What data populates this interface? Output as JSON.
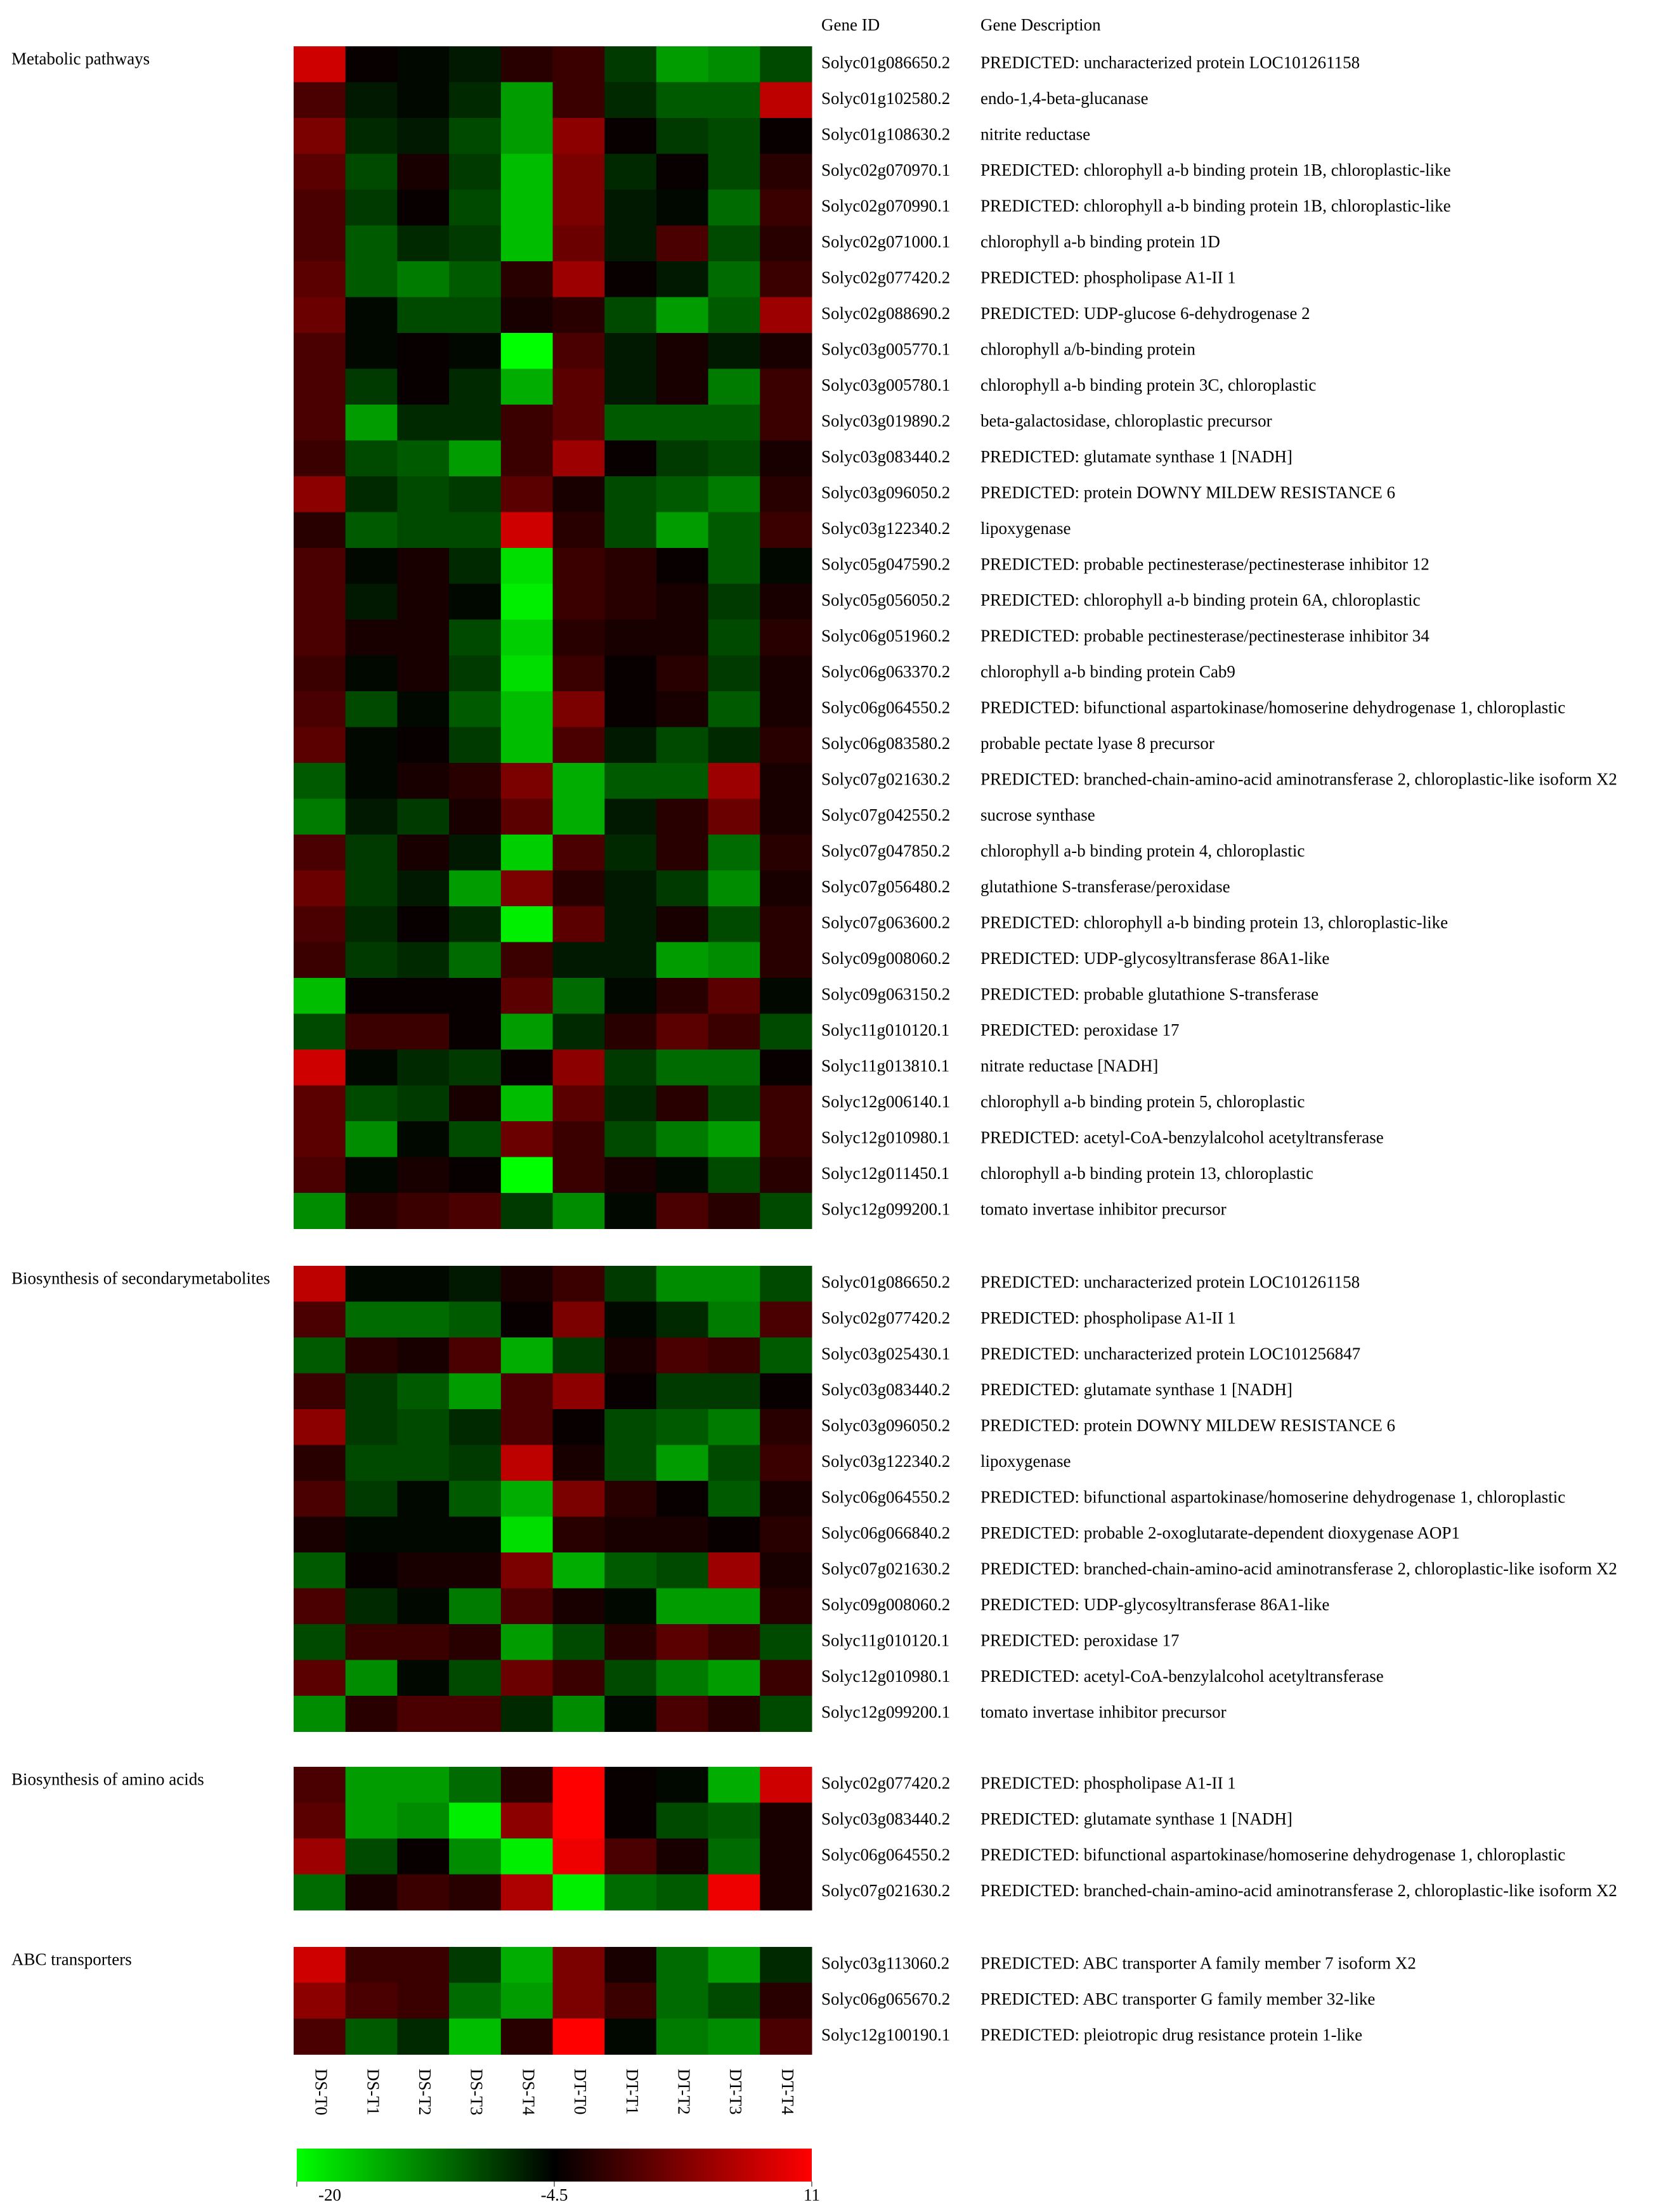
{
  "chart_data": {
    "type": "heatmap",
    "gene_id_header": "Gene ID",
    "description_header": "Gene Description",
    "columns": [
      "DS-T0",
      "DS-T1",
      "DS-T2",
      "DS-T3",
      "DS-T4",
      "DT-T0",
      "DT-T1",
      "DT-T2",
      "DT-T3",
      "DT-T4"
    ],
    "colorbar": {
      "ticks": [
        -20,
        -4.5,
        11
      ],
      "colors": [
        "#00ff00",
        "#000000",
        "#ff0000"
      ]
    },
    "groups": [
      {
        "name": "Metabolic pathways",
        "gene_ids": [
          "Solyc01g086650.2",
          "Solyc01g102580.2",
          "Solyc01g108630.2",
          "Solyc02g070970.1",
          "Solyc02g070990.1",
          "Solyc02g071000.1",
          "Solyc02g077420.2",
          "Solyc02g088690.2",
          "Solyc03g005770.1",
          "Solyc03g005780.1",
          "Solyc03g019890.2",
          "Solyc03g083440.2",
          "Solyc03g096050.2",
          "Solyc03g122340.2",
          "Solyc05g047590.2",
          "Solyc05g056050.2",
          "Solyc06g051960.2",
          "Solyc06g063370.2",
          "Solyc06g064550.2",
          "Solyc06g083580.2",
          "Solyc07g021630.2",
          "Solyc07g042550.2",
          "Solyc07g047850.2",
          "Solyc07g056480.2",
          "Solyc07g063600.2",
          "Solyc09g008060.2",
          "Solyc09g063150.2",
          "Solyc11g010120.1",
          "Solyc11g013810.1",
          "Solyc12g006140.1",
          "Solyc12g010980.1",
          "Solyc12g011450.1",
          "Solyc12g099200.1"
        ],
        "descriptions": [
          "PREDICTED: uncharacterized protein LOC101261158",
          "endo-1,4-beta-glucanase",
          "nitrite reductase",
          "PREDICTED: chlorophyll a-b binding protein 1B, chloroplastic-like",
          "PREDICTED: chlorophyll a-b binding protein 1B, chloroplastic-like",
          "chlorophyll a-b binding protein 1D",
          "PREDICTED: phospholipase A1-II 1",
          "PREDICTED: UDP-glucose 6-dehydrogenase 2",
          "chlorophyll a/b-binding protein",
          "chlorophyll a-b binding protein 3C, chloroplastic",
          "beta-galactosidase, chloroplastic precursor",
          "PREDICTED: glutamate synthase 1 [NADH]",
          "PREDICTED: protein DOWNY MILDEW RESISTANCE 6",
          "lipoxygenase",
          "PREDICTED: probable pectinesterase/pectinesterase inhibitor 12",
          "PREDICTED: chlorophyll a-b binding protein 6A, chloroplastic",
          "PREDICTED: probable pectinesterase/pectinesterase inhibitor 34",
          "chlorophyll a-b binding protein Cab9",
          "PREDICTED: bifunctional aspartokinase/homoserine dehydrogenase 1, chloroplastic",
          "probable pectate lyase 8 precursor",
          "PREDICTED: branched-chain-amino-acid aminotransferase 2, chloroplastic-like isoform X2",
          "sucrose synthase",
          "chlorophyll a-b binding protein 4, chloroplastic",
          "glutathione S-transferase/peroxidase",
          "PREDICTED: chlorophyll a-b binding protein 13, chloroplastic-like",
          "PREDICTED: UDP-glycosyltransferase 86A1-like",
          "PREDICTED: probable glutathione S-transferase",
          "PREDICTED: peroxidase 17",
          "nitrate reductase [NADH]",
          "chlorophyll a-b binding protein 5, chloroplastic",
          "PREDICTED: acetyl-CoA-benzylalcohol acetyltransferase",
          "chlorophyll a-b binding protein 13, chloroplastic",
          "tomato invertase inhibitor precursor"
        ],
        "values": [
          [
            8,
            -4,
            -5,
            -6,
            -2,
            -1,
            -8,
            -14,
            -13,
            -9
          ],
          [
            0,
            -6,
            -5,
            -7,
            -14,
            -1,
            -7,
            -10,
            -10,
            7
          ],
          [
            3,
            -7,
            -6,
            -9,
            -14,
            4,
            -4,
            -8,
            -9,
            -4
          ],
          [
            1,
            -9,
            -3,
            -8,
            -16,
            3,
            -7,
            -4,
            -9,
            -2
          ],
          [
            0,
            -8,
            -4,
            -9,
            -16,
            3,
            -6,
            -5,
            -11,
            -1
          ],
          [
            0,
            -10,
            -7,
            -8,
            -16,
            2,
            -6,
            0,
            -9,
            -2
          ],
          [
            1,
            -10,
            -12,
            -10,
            -2,
            5,
            -4,
            -6,
            -11,
            -1
          ],
          [
            2,
            -5,
            -9,
            -9,
            -3,
            -2,
            -9,
            -14,
            -10,
            5
          ],
          [
            0,
            -5,
            -4,
            -5,
            -20,
            0,
            -6,
            -3,
            -6,
            -3
          ],
          [
            0,
            -8,
            -4,
            -7,
            -15,
            1,
            -6,
            -3,
            -12,
            -1
          ],
          [
            0,
            -14,
            -7,
            -7,
            -1,
            1,
            -10,
            -10,
            -10,
            -1
          ],
          [
            -1,
            -9,
            -10,
            -14,
            -1,
            5,
            -4,
            -8,
            -9,
            -3
          ],
          [
            4,
            -7,
            -9,
            -8,
            1,
            -3,
            -9,
            -10,
            -12,
            -2
          ],
          [
            -2,
            -10,
            -9,
            -9,
            8,
            -2,
            -9,
            -14,
            -10,
            -1
          ],
          [
            0,
            -5,
            -3,
            -7,
            -18,
            -1,
            -2,
            -4,
            -10,
            -5
          ],
          [
            0,
            -6,
            -3,
            -5,
            -19,
            -1,
            -2,
            -3,
            -8,
            -3
          ],
          [
            0,
            -3,
            -3,
            -9,
            -17,
            -2,
            -3,
            -3,
            -9,
            -2
          ],
          [
            -1,
            -5,
            -3,
            -8,
            -18,
            -1,
            -4,
            -2,
            -8,
            -3
          ],
          [
            0,
            -9,
            -5,
            -10,
            -16,
            3,
            -4,
            -3,
            -10,
            -3
          ],
          [
            1,
            -5,
            -4,
            -8,
            -16,
            0,
            -6,
            -9,
            -7,
            -2
          ],
          [
            -10,
            -5,
            -3,
            -2,
            3,
            -15,
            -10,
            -10,
            5,
            -3
          ],
          [
            -12,
            -6,
            -8,
            -3,
            1,
            -15,
            -6,
            -2,
            2,
            -3
          ],
          [
            0,
            -8,
            -3,
            -6,
            -17,
            0,
            -7,
            -2,
            -11,
            -2
          ],
          [
            2,
            -8,
            -6,
            -14,
            3,
            -2,
            -6,
            -8,
            -13,
            -3
          ],
          [
            0,
            -7,
            -4,
            -7,
            -19,
            1,
            -6,
            -3,
            -9,
            -2
          ],
          [
            -1,
            -8,
            -7,
            -11,
            -1,
            -6,
            -6,
            -14,
            -13,
            -2
          ],
          [
            -16,
            -4,
            -4,
            -4,
            1,
            -11,
            -5,
            -2,
            1,
            -5
          ],
          [
            -9,
            -1,
            -1,
            -4,
            -14,
            -7,
            -2,
            1,
            -1,
            -9
          ],
          [
            8,
            -5,
            -7,
            -8,
            -4,
            4,
            -8,
            -11,
            -11,
            -4
          ],
          [
            1,
            -9,
            -8,
            -3,
            -16,
            1,
            -7,
            -2,
            -9,
            -1
          ],
          [
            1,
            -13,
            -5,
            -9,
            2,
            -1,
            -9,
            -12,
            -14,
            -1
          ],
          [
            0,
            -5,
            -3,
            -4,
            -20,
            -1,
            -3,
            -5,
            -9,
            -2
          ],
          [
            -13,
            -2,
            -1,
            0,
            -8,
            -13,
            -5,
            0,
            -2,
            -9
          ]
        ]
      },
      {
        "name": "Biosynthesis of secondarymetabolites",
        "gene_ids": [
          "Solyc01g086650.2",
          "Solyc02g077420.2",
          "Solyc03g025430.1",
          "Solyc03g083440.2",
          "Solyc03g096050.2",
          "Solyc03g122340.2",
          "Solyc06g064550.2",
          "Solyc06g066840.2",
          "Solyc07g021630.2",
          "Solyc09g008060.2",
          "Solyc11g010120.1",
          "Solyc12g010980.1",
          "Solyc12g099200.1"
        ],
        "descriptions": [
          "PREDICTED: uncharacterized protein LOC101261158",
          "PREDICTED: phospholipase A1-II 1",
          "PREDICTED: uncharacterized protein LOC101256847",
          "PREDICTED: glutamate synthase 1 [NADH]",
          "PREDICTED: protein DOWNY MILDEW RESISTANCE 6",
          "lipoxygenase",
          "PREDICTED: bifunctional aspartokinase/homoserine dehydrogenase 1, chloroplastic",
          "PREDICTED: probable 2-oxoglutarate-dependent dioxygenase AOP1",
          "PREDICTED: branched-chain-amino-acid aminotransferase 2, chloroplastic-like isoform X2",
          "PREDICTED: UDP-glycosyltransferase 86A1-like",
          "PREDICTED: peroxidase 17",
          "PREDICTED: acetyl-CoA-benzylalcohol acetyltransferase",
          "tomato invertase inhibitor precursor"
        ],
        "values": [
          [
            7,
            -5,
            -5,
            -6,
            -3,
            -1,
            -8,
            -13,
            -13,
            -9
          ],
          [
            0,
            -11,
            -11,
            -10,
            -4,
            3,
            -5,
            -7,
            -12,
            0
          ],
          [
            -10,
            -2,
            -3,
            0,
            -15,
            -8,
            -3,
            0,
            -1,
            -10
          ],
          [
            -1,
            -8,
            -10,
            -14,
            0,
            4,
            -4,
            -8,
            -8,
            -4
          ],
          [
            4,
            -8,
            -9,
            -7,
            0,
            -4,
            -9,
            -10,
            -12,
            -2
          ],
          [
            -2,
            -9,
            -9,
            -8,
            7,
            -3,
            -9,
            -14,
            -9,
            -1
          ],
          [
            0,
            -8,
            -5,
            -10,
            -15,
            3,
            -2,
            -4,
            -10,
            -3
          ],
          [
            -3,
            -5,
            -5,
            -5,
            -18,
            -2,
            -3,
            -3,
            -4,
            -2
          ],
          [
            -10,
            -4,
            -3,
            -3,
            3,
            -15,
            -10,
            -9,
            5,
            -3
          ],
          [
            0,
            -7,
            -5,
            -12,
            0,
            -3,
            -5,
            -14,
            -14,
            -2
          ],
          [
            -9,
            -1,
            -1,
            -2,
            -14,
            -9,
            -2,
            1,
            -1,
            -9
          ],
          [
            1,
            -13,
            -5,
            -9,
            2,
            -1,
            -9,
            -12,
            -14,
            -1
          ],
          [
            -13,
            -2,
            0,
            0,
            -7,
            -13,
            -5,
            0,
            -2,
            -9
          ]
        ]
      },
      {
        "name": "Biosynthesis of amino acids",
        "gene_ids": [
          "Solyc02g077420.2",
          "Solyc03g083440.2",
          "Solyc06g064550.2",
          "Solyc07g021630.2"
        ],
        "descriptions": [
          "PREDICTED: phospholipase A1-II 1",
          "PREDICTED: glutamate synthase 1 [NADH]",
          "PREDICTED: bifunctional aspartokinase/homoserine dehydrogenase 1, chloroplastic",
          "PREDICTED: branched-chain-amino-acid aminotransferase 2, chloroplastic-like isoform X2"
        ],
        "values": [
          [
            0,
            -14,
            -14,
            -11,
            -2,
            11,
            -4,
            -5,
            -15,
            8
          ],
          [
            1,
            -14,
            -13,
            -19,
            4,
            11,
            -4,
            -9,
            -10,
            -3
          ],
          [
            5,
            -9,
            -4,
            -13,
            -19,
            10,
            0,
            -3,
            -11,
            -3
          ],
          [
            -11,
            -3,
            -1,
            -2,
            6,
            -19,
            -11,
            -10,
            10,
            -3
          ]
        ]
      },
      {
        "name": "ABC transporters",
        "gene_ids": [
          "Solyc03g113060.2",
          "Solyc06g065670.2",
          "Solyc12g100190.1"
        ],
        "descriptions": [
          "PREDICTED: ABC transporter A family member 7 isoform X2",
          "PREDICTED: ABC transporter G family member 32-like",
          "PREDICTED: pleiotropic drug resistance protein 1-like"
        ],
        "values": [
          [
            8,
            -1,
            -1,
            -8,
            -15,
            3,
            -3,
            -11,
            -14,
            -7
          ],
          [
            4,
            0,
            -1,
            -11,
            -14,
            3,
            -1,
            -11,
            -9,
            -2
          ],
          [
            0,
            -10,
            -7,
            -16,
            -2,
            11,
            -5,
            -12,
            -13,
            0
          ]
        ]
      }
    ]
  }
}
